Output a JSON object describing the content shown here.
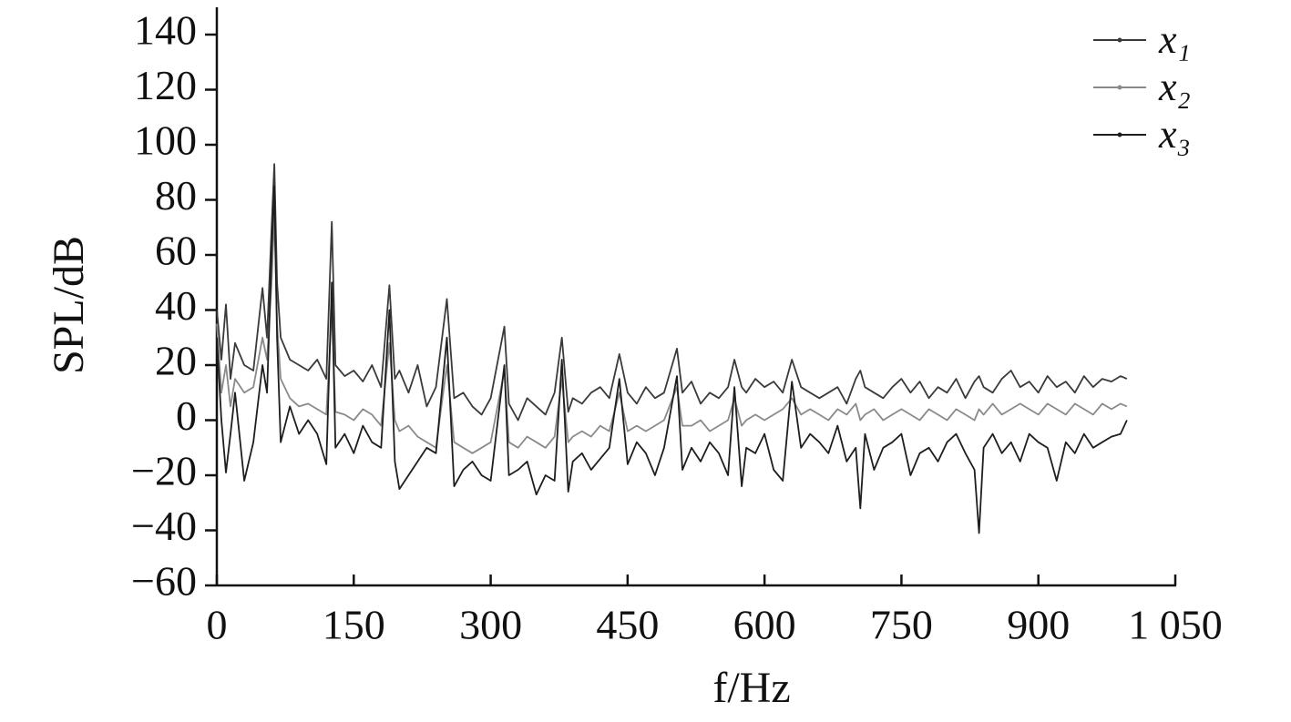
{
  "chart_data": {
    "type": "line",
    "x_label": "f/Hz",
    "y_label": "SPL/dB",
    "xlim": [
      0,
      1050
    ],
    "ylim": [
      -60,
      140
    ],
    "xticks": [
      0,
      150,
      300,
      450,
      600,
      750,
      900,
      {
        "value": 1050,
        "label": "1 050"
      }
    ],
    "yticks": [
      {
        "value": -60,
        "label": "−60"
      },
      {
        "value": -40,
        "label": "−40"
      },
      {
        "value": -20,
        "label": "−20"
      },
      0,
      20,
      40,
      60,
      80,
      100,
      120,
      140
    ],
    "legend": "upper right",
    "x": [
      0,
      5,
      10,
      15,
      20,
      30,
      40,
      50,
      55,
      60,
      63,
      66,
      70,
      80,
      90,
      100,
      110,
      120,
      126,
      130,
      140,
      150,
      160,
      170,
      180,
      189,
      195,
      200,
      210,
      220,
      230,
      240,
      252,
      260,
      270,
      280,
      290,
      300,
      315,
      320,
      330,
      340,
      350,
      360,
      370,
      378,
      385,
      390,
      400,
      410,
      420,
      430,
      441,
      450,
      460,
      470,
      480,
      490,
      504,
      510,
      520,
      530,
      540,
      550,
      560,
      567,
      575,
      580,
      590,
      600,
      610,
      620,
      630,
      640,
      650,
      660,
      670,
      680,
      690,
      700,
      705,
      710,
      720,
      730,
      740,
      750,
      760,
      770,
      780,
      790,
      800,
      810,
      820,
      830,
      835,
      840,
      850,
      860,
      870,
      880,
      890,
      900,
      910,
      920,
      930,
      940,
      950,
      960,
      970,
      980,
      990,
      997
    ],
    "series": [
      {
        "name": "x₁",
        "color": "#3a3a3a",
        "values": [
          40,
          22,
          42,
          15,
          28,
          20,
          18,
          48,
          30,
          70,
          93,
          50,
          30,
          22,
          20,
          18,
          22,
          15,
          72,
          20,
          16,
          18,
          14,
          20,
          12,
          49,
          15,
          18,
          10,
          20,
          5,
          12,
          44,
          8,
          10,
          5,
          2,
          8,
          34,
          6,
          0,
          8,
          5,
          2,
          10,
          30,
          3,
          8,
          6,
          10,
          12,
          8,
          24,
          10,
          6,
          12,
          8,
          10,
          26,
          10,
          14,
          6,
          10,
          8,
          12,
          22,
          12,
          10,
          15,
          12,
          14,
          10,
          22,
          12,
          10,
          8,
          10,
          12,
          6,
          15,
          18,
          12,
          10,
          8,
          12,
          15,
          10,
          14,
          8,
          12,
          10,
          15,
          8,
          14,
          16,
          12,
          10,
          15,
          18,
          12,
          14,
          10,
          16,
          12,
          14,
          10,
          16,
          12,
          15,
          14,
          16,
          15
        ]
      },
      {
        "name": "x₂",
        "color": "#8a8a8a",
        "values": [
          35,
          10,
          20,
          5,
          15,
          10,
          12,
          30,
          22,
          50,
          75,
          35,
          15,
          8,
          5,
          6,
          4,
          2,
          40,
          3,
          2,
          0,
          4,
          2,
          -2,
          28,
          0,
          -4,
          -2,
          -6,
          -8,
          -10,
          20,
          -8,
          -10,
          -12,
          -10,
          -8,
          18,
          -8,
          -10,
          -6,
          -8,
          -10,
          -6,
          15,
          -8,
          -6,
          -4,
          -6,
          -2,
          -4,
          10,
          -4,
          -2,
          -4,
          -2,
          0,
          12,
          -2,
          -2,
          0,
          -4,
          -2,
          0,
          8,
          -2,
          0,
          2,
          0,
          2,
          4,
          8,
          2,
          4,
          2,
          0,
          4,
          2,
          6,
          0,
          2,
          4,
          0,
          2,
          4,
          2,
          0,
          4,
          2,
          0,
          4,
          2,
          0,
          4,
          2,
          6,
          2,
          4,
          6,
          4,
          2,
          6,
          4,
          2,
          6,
          4,
          2,
          6,
          4,
          6,
          5
        ]
      },
      {
        "name": "x₃",
        "color": "#1e1e1e",
        "values": [
          30,
          0,
          -19,
          -5,
          10,
          -22,
          -8,
          20,
          10,
          60,
          85,
          30,
          -8,
          5,
          -5,
          0,
          -5,
          -16,
          50,
          -10,
          -5,
          -12,
          -2,
          -8,
          -10,
          40,
          -15,
          -25,
          -20,
          -15,
          -10,
          -12,
          30,
          -24,
          -18,
          -15,
          -20,
          -22,
          20,
          -20,
          -18,
          -15,
          -27,
          -20,
          -22,
          22,
          -26,
          -15,
          -12,
          -18,
          -14,
          -10,
          15,
          -16,
          -8,
          -12,
          -20,
          -10,
          16,
          -18,
          -10,
          -15,
          -8,
          -12,
          -20,
          12,
          -24,
          -10,
          -12,
          -5,
          -18,
          -22,
          14,
          -10,
          -5,
          -8,
          -12,
          -2,
          -15,
          -10,
          -32,
          -5,
          -18,
          -10,
          -8,
          -5,
          -20,
          -12,
          -10,
          -15,
          -8,
          -5,
          -12,
          -18,
          -41,
          -10,
          -5,
          -12,
          -8,
          -15,
          -5,
          -8,
          -10,
          -22,
          -8,
          -12,
          -5,
          -10,
          -8,
          -6,
          -5,
          0
        ]
      }
    ]
  }
}
